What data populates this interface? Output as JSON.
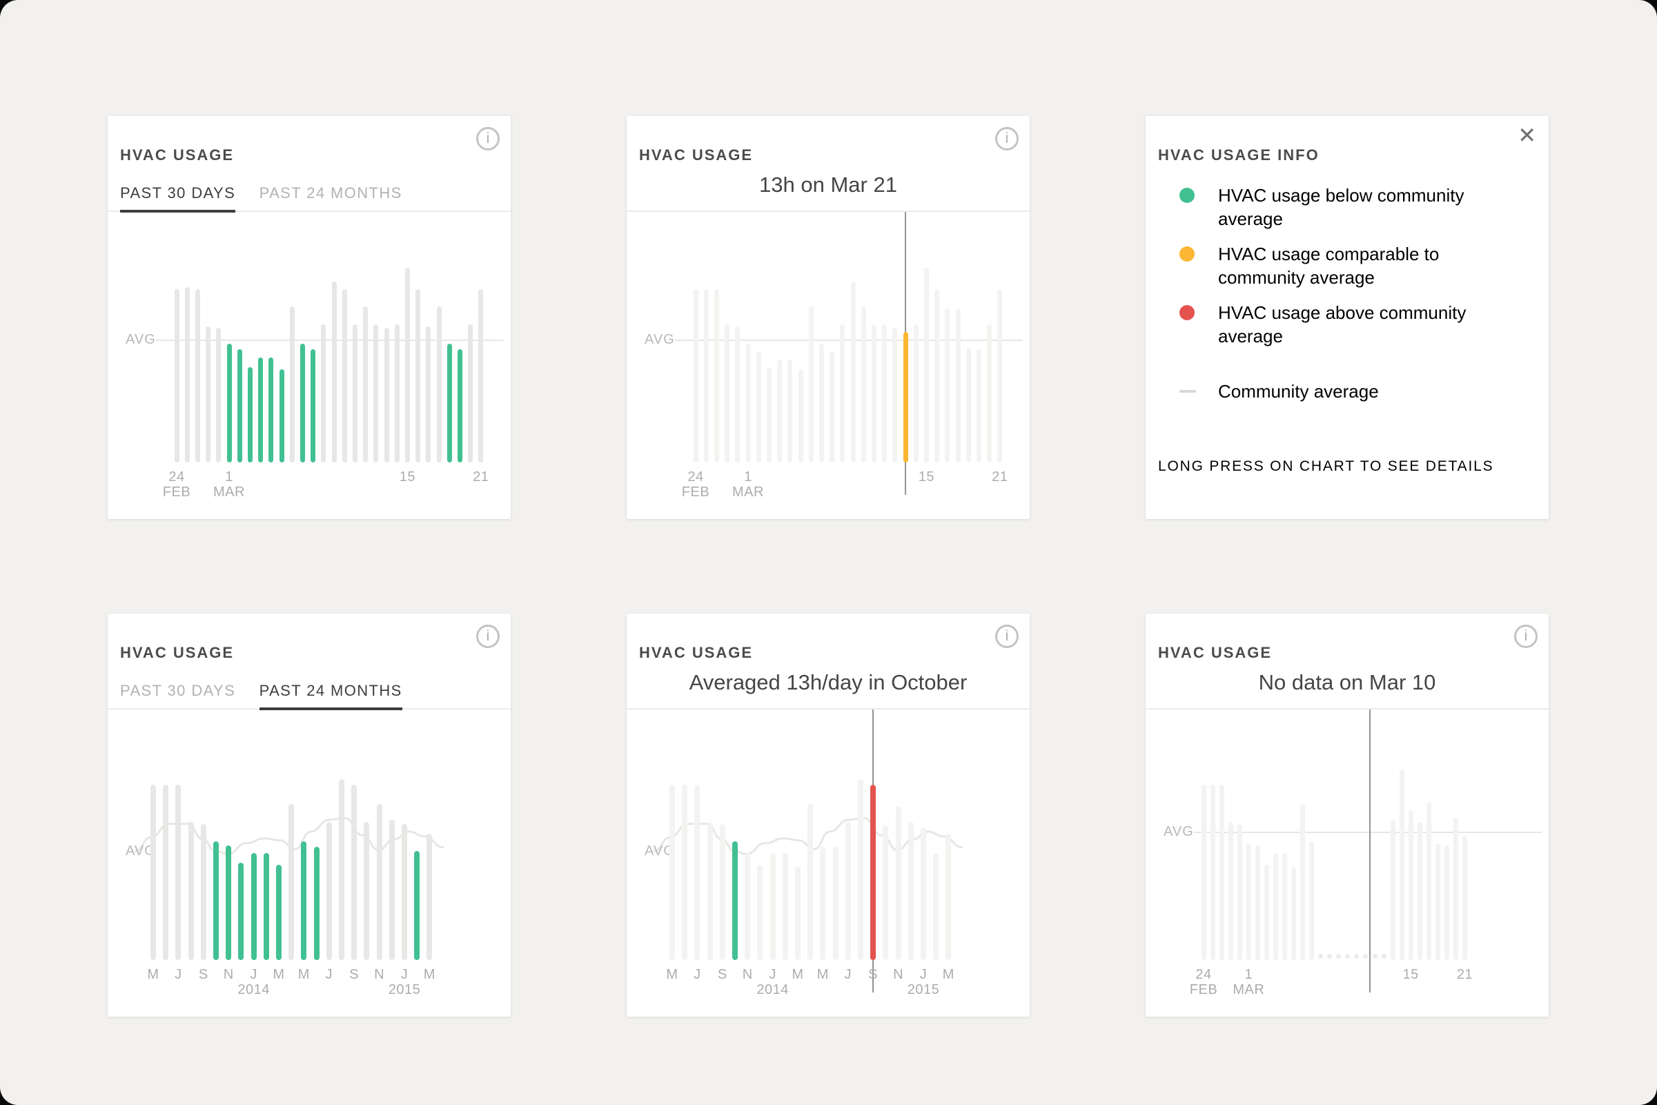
{
  "colors": {
    "background": "#F2F1EF",
    "card": "#FFFFFF",
    "title_text": "#4B4B49",
    "heading_text": "#454543",
    "tab_active": "#3E3E3C",
    "tab_inactive": "#B4B2B0",
    "divider": "#ECEBE9",
    "green": "#41C091",
    "yellow": "#FBB733",
    "red": "#E4534E",
    "bar_gray": "#E8E7E5",
    "bar_light": "#F4F3F1",
    "avg_line": "#E7E6E4",
    "avg_label": "#B9B8B6",
    "axis_label": "#ADACAA",
    "cursor": "#949391",
    "dot": "#ECEBE9",
    "legend_text": "#4D4D4B",
    "footnote_text": "#9E9D9B",
    "legend_dash": "#D9D8D6"
  },
  "icons": {
    "info": "i",
    "close": "✕"
  },
  "cards": [
    {
      "title": "HVAC USAGE",
      "tabs": [
        {
          "label": "PAST 30 DAYS",
          "active": true
        },
        {
          "label": "PAST 24 MONTHS",
          "active": false
        }
      ],
      "chart_data": {
        "type": "bar",
        "period": "past 30 days",
        "avg_label": "AVG",
        "avg": 0.63,
        "values": [
          0.89,
          0.9,
          0.89,
          0.7,
          0.69,
          0.61,
          0.58,
          0.49,
          0.54,
          0.54,
          0.48,
          0.8,
          0.61,
          0.58,
          0.71,
          0.93,
          0.89,
          0.71,
          0.8,
          0.71,
          0.69,
          0.71,
          1.0,
          0.89,
          0.7,
          0.8,
          0.61,
          0.58,
          0.71,
          0.89
        ],
        "bar_colors": [
          "n",
          "n",
          "n",
          "n",
          "n",
          "g",
          "g",
          "g",
          "g",
          "g",
          "g",
          "n",
          "g",
          "g",
          "n",
          "n",
          "n",
          "n",
          "n",
          "n",
          "n",
          "n",
          "n",
          "n",
          "n",
          "n",
          "g",
          "g",
          "n",
          "n"
        ],
        "x_labels": [
          {
            "i": 0,
            "t": "24",
            "t2": "FEB"
          },
          {
            "i": 5,
            "t": "1",
            "t2": "MAR"
          },
          {
            "i": 22,
            "t": "15"
          },
          {
            "i": 29,
            "t": "21"
          }
        ]
      }
    },
    {
      "title": "HVAC USAGE",
      "heading": "13h on Mar 21",
      "chart_data": {
        "type": "bar",
        "period": "past 30 days",
        "avg_label": "AVG",
        "avg": 0.63,
        "cursor": {
          "index": 20,
          "selected_value": "13h on Mar 21"
        },
        "values": [
          0.89,
          0.89,
          0.89,
          0.71,
          0.7,
          0.61,
          0.57,
          0.49,
          0.53,
          0.53,
          0.48,
          0.8,
          0.61,
          0.57,
          0.71,
          0.93,
          0.8,
          0.71,
          0.71,
          0.69,
          0.67,
          0.71,
          1.0,
          0.89,
          0.79,
          0.79,
          0.59,
          0.58,
          0.71,
          0.89
        ],
        "bar_colors": [
          "l",
          "l",
          "l",
          "l",
          "l",
          "l",
          "l",
          "l",
          "l",
          "l",
          "l",
          "l",
          "l",
          "l",
          "l",
          "l",
          "l",
          "l",
          "l",
          "l",
          "y",
          "l",
          "l",
          "l",
          "l",
          "l",
          "l",
          "l",
          "l",
          "l"
        ],
        "x_labels": [
          {
            "i": 0,
            "t": "24",
            "t2": "FEB"
          },
          {
            "i": 5,
            "t": "1",
            "t2": "MAR"
          },
          {
            "i": 22,
            "t": "15"
          },
          {
            "i": 29,
            "t": "21"
          }
        ]
      }
    },
    {
      "title": "HVAC USAGE INFO",
      "legend": [
        {
          "color": "green",
          "label": "HVAC usage below community average"
        },
        {
          "color": "yellow",
          "label": "HVAC usage comparable to community average"
        },
        {
          "color": "red",
          "label": "HVAC usage above community average"
        },
        {
          "color": "dash",
          "label": "Community average"
        }
      ],
      "footnote": "LONG PRESS ON CHART TO SEE DETAILS"
    },
    {
      "title": "HVAC USAGE",
      "tabs": [
        {
          "label": "PAST 30 DAYS",
          "active": false
        },
        {
          "label": "PAST 24 MONTHS",
          "active": true
        }
      ],
      "chart_data": {
        "type": "bar",
        "period": "past 24 months",
        "avg_label": "AVG",
        "avg_line": [
          [
            0,
            0.56
          ],
          [
            0.05,
            0.63
          ],
          [
            0.11,
            0.7
          ],
          [
            0.17,
            0.7
          ],
          [
            0.22,
            0.62
          ],
          [
            0.26,
            0.56
          ],
          [
            0.3,
            0.545
          ],
          [
            0.36,
            0.6
          ],
          [
            0.42,
            0.625
          ],
          [
            0.47,
            0.615
          ],
          [
            0.52,
            0.57
          ],
          [
            0.57,
            0.66
          ],
          [
            0.63,
            0.72
          ],
          [
            0.68,
            0.73
          ],
          [
            0.74,
            0.64
          ],
          [
            0.79,
            0.565
          ],
          [
            0.84,
            0.62
          ],
          [
            0.89,
            0.66
          ],
          [
            0.94,
            0.635
          ],
          [
            1,
            0.58
          ]
        ],
        "values": [
          0.9,
          0.9,
          0.9,
          0.71,
          0.7,
          0.61,
          0.59,
          0.5,
          0.55,
          0.55,
          0.49,
          0.8,
          0.61,
          0.58,
          0.71,
          0.93,
          0.9,
          0.71,
          0.8,
          0.72,
          0.7,
          0.56,
          0.65
        ],
        "bar_colors": [
          "n",
          "n",
          "n",
          "n",
          "n",
          "g",
          "g",
          "g",
          "g",
          "g",
          "g",
          "n",
          "g",
          "g",
          "n",
          "n",
          "n",
          "n",
          "n",
          "n",
          "n",
          "g",
          "n"
        ],
        "x_labels": [
          {
            "i": 0,
            "t": "M"
          },
          {
            "i": 2,
            "t": "J"
          },
          {
            "i": 4,
            "t": "S"
          },
          {
            "i": 6,
            "t": "N"
          },
          {
            "i": 8,
            "t": "J",
            "t2": "2014"
          },
          {
            "i": 10,
            "t": "M"
          },
          {
            "i": 12,
            "t": "M"
          },
          {
            "i": 14,
            "t": "J"
          },
          {
            "i": 16,
            "t": "S"
          },
          {
            "i": 18,
            "t": "N"
          },
          {
            "i": 20,
            "t": "J",
            "t2": "2015"
          },
          {
            "i": 22,
            "t": "M"
          }
        ]
      }
    },
    {
      "title": "HVAC USAGE",
      "heading": "Averaged 13h/day in October",
      "chart_data": {
        "type": "bar",
        "period": "past 24 months",
        "avg_label": "AVG",
        "avg_line": [
          [
            0,
            0.56
          ],
          [
            0.05,
            0.63
          ],
          [
            0.11,
            0.7
          ],
          [
            0.17,
            0.7
          ],
          [
            0.22,
            0.62
          ],
          [
            0.26,
            0.56
          ],
          [
            0.3,
            0.545
          ],
          [
            0.36,
            0.6
          ],
          [
            0.42,
            0.625
          ],
          [
            0.47,
            0.615
          ],
          [
            0.52,
            0.57
          ],
          [
            0.57,
            0.66
          ],
          [
            0.63,
            0.72
          ],
          [
            0.68,
            0.73
          ],
          [
            0.74,
            0.64
          ],
          [
            0.79,
            0.565
          ],
          [
            0.84,
            0.62
          ],
          [
            0.89,
            0.66
          ],
          [
            0.94,
            0.635
          ],
          [
            1,
            0.58
          ]
        ],
        "cursor": {
          "index": 16,
          "selected_value": "Averaged 13h/day in October"
        },
        "values": [
          0.9,
          0.9,
          0.9,
          0.71,
          0.7,
          0.61,
          0.55,
          0.49,
          0.55,
          0.55,
          0.48,
          0.8,
          0.58,
          0.58,
          0.71,
          0.93,
          0.9,
          0.69,
          0.79,
          0.71,
          0.68,
          0.55,
          0.65
        ],
        "bar_colors": [
          "l",
          "l",
          "l",
          "l",
          "l",
          "g",
          "l",
          "l",
          "l",
          "l",
          "l",
          "l",
          "l",
          "l",
          "l",
          "l",
          "r",
          "l",
          "l",
          "l",
          "l",
          "l",
          "l"
        ],
        "x_labels": [
          {
            "i": 0,
            "t": "M"
          },
          {
            "i": 2,
            "t": "J"
          },
          {
            "i": 4,
            "t": "S"
          },
          {
            "i": 6,
            "t": "N"
          },
          {
            "i": 8,
            "t": "J",
            "t2": "2014"
          },
          {
            "i": 10,
            "t": "M"
          },
          {
            "i": 12,
            "t": "M"
          },
          {
            "i": 14,
            "t": "J"
          },
          {
            "i": 16,
            "t": "S"
          },
          {
            "i": 18,
            "t": "N"
          },
          {
            "i": 20,
            "t": "J",
            "t2": "2015"
          },
          {
            "i": 22,
            "t": "M"
          }
        ]
      }
    },
    {
      "title": "HVAC USAGE",
      "heading": "No data on Mar 10",
      "chart_data": {
        "type": "bar",
        "period": "past 30 days",
        "avg_label": "AVG",
        "avg": 0.66,
        "cursor": {
          "index": 18.5,
          "selected_value": "No data on Mar 10"
        },
        "values": [
          0.9,
          0.9,
          0.9,
          0.71,
          0.7,
          0.6,
          0.59,
          0.49,
          0.55,
          0.55,
          0.48,
          0.8,
          0.61,
          null,
          null,
          null,
          null,
          null,
          null,
          null,
          null,
          0.72,
          0.98,
          0.77,
          0.71,
          0.81,
          0.6,
          0.59,
          0.73,
          0.64
        ],
        "bar_colors": [
          "l",
          "l",
          "l",
          "l",
          "l",
          "l",
          "l",
          "l",
          "l",
          "l",
          "l",
          "l",
          "l",
          null,
          null,
          null,
          null,
          null,
          null,
          null,
          null,
          "l",
          "l",
          "l",
          "l",
          "l",
          "l",
          "l",
          "l",
          "l"
        ],
        "x_labels": [
          {
            "i": 0,
            "t": "24",
            "t2": "FEB"
          },
          {
            "i": 5,
            "t": "1",
            "t2": "MAR"
          },
          {
            "i": 23,
            "t": "15"
          },
          {
            "i": 29,
            "t": "21"
          }
        ]
      }
    }
  ]
}
